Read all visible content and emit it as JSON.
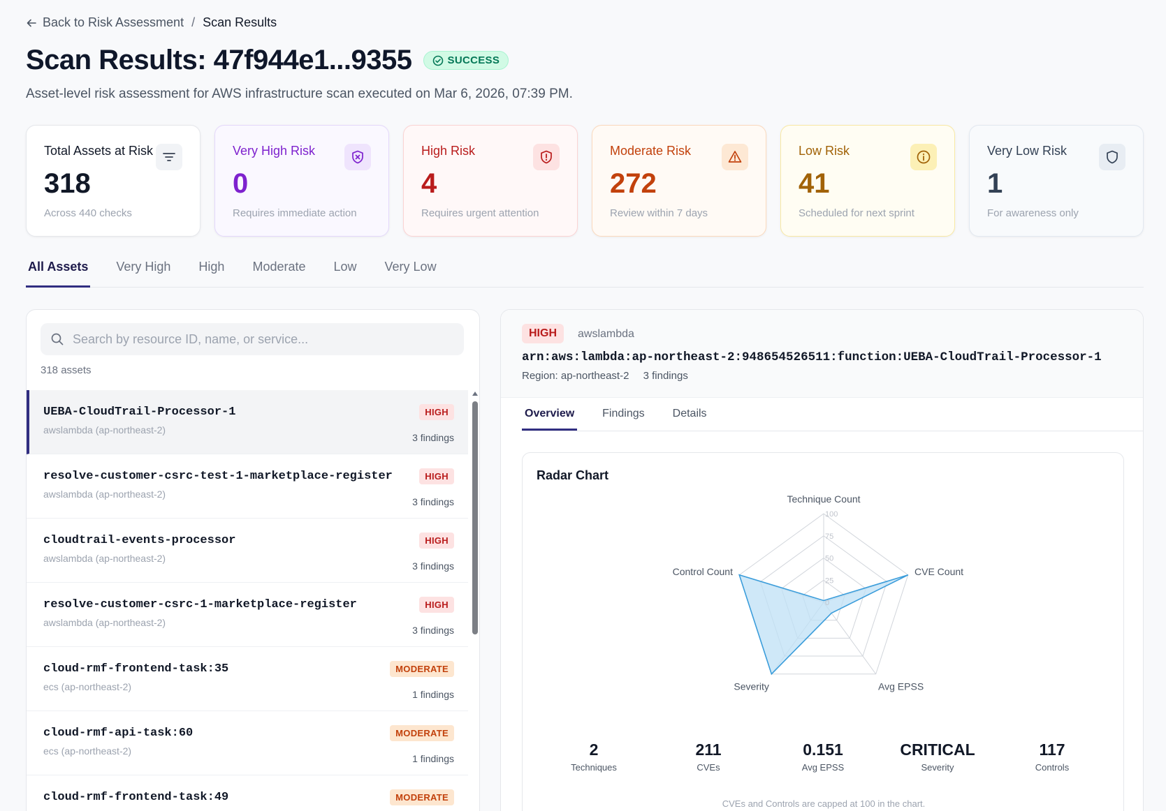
{
  "breadcrumb": {
    "back": "Back to Risk Assessment",
    "separator": "/",
    "current": "Scan Results"
  },
  "header": {
    "title": "Scan Results: 47f944e1...9355",
    "status": "SUCCESS",
    "subtitle": "Asset-level risk assessment for AWS infrastructure scan executed on Mar 6, 2026, 07:39 PM."
  },
  "cards": [
    {
      "label": "Total Assets at Risk",
      "value": "318",
      "note": "Across 440 checks",
      "icon": "filter-lines-icon"
    },
    {
      "label": "Very High Risk",
      "value": "0",
      "note": "Requires immediate action",
      "icon": "shield-x-icon",
      "color": "#7e22ce"
    },
    {
      "label": "High Risk",
      "value": "4",
      "note": "Requires urgent attention",
      "icon": "shield-alert-icon",
      "color": "#b91c1c"
    },
    {
      "label": "Moderate Risk",
      "value": "272",
      "note": "Review within 7 days",
      "icon": "warning-triangle-icon",
      "color": "#c2410c"
    },
    {
      "label": "Low Risk",
      "value": "41",
      "note": "Scheduled for next sprint",
      "icon": "info-circle-icon",
      "color": "#a16207"
    },
    {
      "label": "Very Low Risk",
      "value": "1",
      "note": "For awareness only",
      "icon": "shield-icon",
      "color": "#334155"
    }
  ],
  "filter_tabs": [
    "All Assets",
    "Very High",
    "High",
    "Moderate",
    "Low",
    "Very Low"
  ],
  "search": {
    "placeholder": "Search by resource ID, name, or service...",
    "count": "318 assets"
  },
  "assets": [
    {
      "name": "UEBA-CloudTrail-Processor-1",
      "meta": "awslambda (ap-northeast-2)",
      "badge": "HIGH",
      "findings": "3 findings"
    },
    {
      "name": "resolve-customer-csrc-test-1-marketplace-register",
      "meta": "awslambda (ap-northeast-2)",
      "badge": "HIGH",
      "findings": "3 findings"
    },
    {
      "name": "cloudtrail-events-processor",
      "meta": "awslambda (ap-northeast-2)",
      "badge": "HIGH",
      "findings": "3 findings"
    },
    {
      "name": "resolve-customer-csrc-1-marketplace-register",
      "meta": "awslambda (ap-northeast-2)",
      "badge": "HIGH",
      "findings": "3 findings"
    },
    {
      "name": "cloud-rmf-frontend-task:35",
      "meta": "ecs (ap-northeast-2)",
      "badge": "MODERATE",
      "findings": "1 findings"
    },
    {
      "name": "cloud-rmf-api-task:60",
      "meta": "ecs (ap-northeast-2)",
      "badge": "MODERATE",
      "findings": "1 findings"
    },
    {
      "name": "cloud-rmf-frontend-task:49",
      "meta": "",
      "badge": "MODERATE",
      "findings": ""
    }
  ],
  "detail": {
    "badge": "HIGH",
    "service": "awslambda",
    "arn": "arn:aws:lambda:ap-northeast-2:948654526511:function:UEBA-CloudTrail-Processor-1",
    "region": "Region: ap-northeast-2",
    "findings": "3 findings",
    "tabs": [
      "Overview",
      "Findings",
      "Details"
    ],
    "chart_title": "Radar Chart",
    "stats": [
      {
        "value": "2",
        "label": "Techniques"
      },
      {
        "value": "211",
        "label": "CVEs"
      },
      {
        "value": "0.151",
        "label": "Avg EPSS"
      },
      {
        "value": "CRITICAL",
        "label": "Severity"
      },
      {
        "value": "117",
        "label": "Controls"
      }
    ],
    "note": "CVEs and Controls are capped at 100 in the chart."
  },
  "chart_data": {
    "type": "radar",
    "axes": [
      "Technique Count",
      "CVE Count",
      "Avg EPSS",
      "Severity",
      "Control Count"
    ],
    "ticks": [
      "0",
      "25",
      "50",
      "75",
      "100"
    ],
    "range": [
      0,
      100
    ],
    "values": [
      2,
      100,
      15,
      100,
      100
    ],
    "colors": {
      "fill": "#bfe0f6",
      "stroke": "#3b9ddb",
      "grid": "#d1d5db"
    }
  }
}
